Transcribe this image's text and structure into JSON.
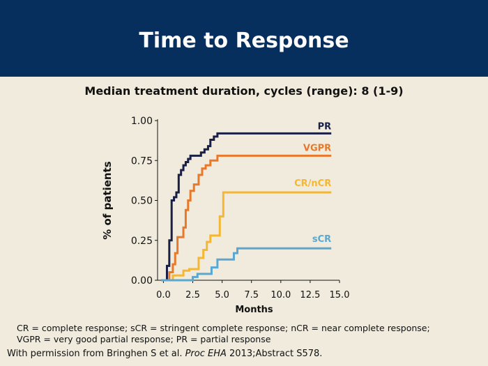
{
  "slide": {
    "title": "Time to Response",
    "subtitle": "Median treatment duration, cycles (range): 8 (1-9)",
    "footnote_line1": "CR = complete response; sCR = stringent complete response; nCR = near complete response;",
    "footnote_line2": "VGPR = very good partial response; PR = partial response",
    "source_prefix": "With permission from Bringhen S et al. ",
    "source_journal": "Proc EHA",
    "source_suffix": " 2013;Abstract S578.",
    "colors": {
      "header_bg": "#062f5e",
      "background": "#f0ebdc"
    }
  },
  "chart_data": {
    "type": "line",
    "step": true,
    "xlabel": "Months",
    "ylabel": "% of patients",
    "xlim": [
      -0.5,
      15.0
    ],
    "ylim": [
      0,
      1.0
    ],
    "xticks": [
      0.0,
      2.5,
      5.0,
      7.5,
      10.0,
      12.5,
      15.0
    ],
    "xtick_labels": [
      "0.0",
      "2.5",
      "5.0",
      "7.5",
      "10.0",
      "12.5",
      "15.0"
    ],
    "yticks": [
      0,
      0.25,
      0.5,
      0.75,
      1.0
    ],
    "ytick_labels": [
      "0.00",
      "0.25",
      "0.50",
      "0.75",
      "1.00"
    ],
    "grid": false,
    "legend": "inline labels at right end of each curve",
    "series": [
      {
        "name": "PR",
        "color": "#1a1f45",
        "x": [
          -0.2,
          0.3,
          0.5,
          0.7,
          0.9,
          1.1,
          1.3,
          1.5,
          1.7,
          1.9,
          2.1,
          2.3,
          3.2,
          3.5,
          3.8,
          4.0,
          4.3,
          4.6,
          14.3
        ],
        "y": [
          0.0,
          0.09,
          0.25,
          0.5,
          0.52,
          0.55,
          0.66,
          0.69,
          0.72,
          0.74,
          0.76,
          0.78,
          0.8,
          0.82,
          0.84,
          0.88,
          0.9,
          0.92,
          0.92
        ]
      },
      {
        "name": "VGPR",
        "color": "#e8782a",
        "x": [
          0.2,
          0.5,
          0.8,
          1.0,
          1.2,
          1.4,
          1.7,
          1.9,
          2.1,
          2.3,
          2.6,
          3.0,
          3.3,
          3.6,
          4.0,
          4.6,
          14.3
        ],
        "y": [
          0.0,
          0.05,
          0.1,
          0.17,
          0.27,
          0.27,
          0.33,
          0.44,
          0.5,
          0.56,
          0.6,
          0.66,
          0.7,
          0.72,
          0.75,
          0.78,
          0.78
        ]
      },
      {
        "name": "CR/nCR",
        "color": "#f5b731",
        "x": [
          0.4,
          0.8,
          1.7,
          2.2,
          3.0,
          3.4,
          3.7,
          4.0,
          4.3,
          4.8,
          5.1,
          14.3
        ],
        "y": [
          0.0,
          0.03,
          0.06,
          0.07,
          0.14,
          0.19,
          0.24,
          0.28,
          0.28,
          0.4,
          0.55,
          0.55
        ]
      },
      {
        "name": "sCR",
        "color": "#5aa8d1",
        "x": [
          -0.2,
          2.5,
          2.9,
          4.1,
          4.6,
          6.0,
          6.3,
          14.3
        ],
        "y": [
          0.0,
          0.02,
          0.04,
          0.08,
          0.13,
          0.17,
          0.2,
          0.2
        ]
      }
    ]
  }
}
